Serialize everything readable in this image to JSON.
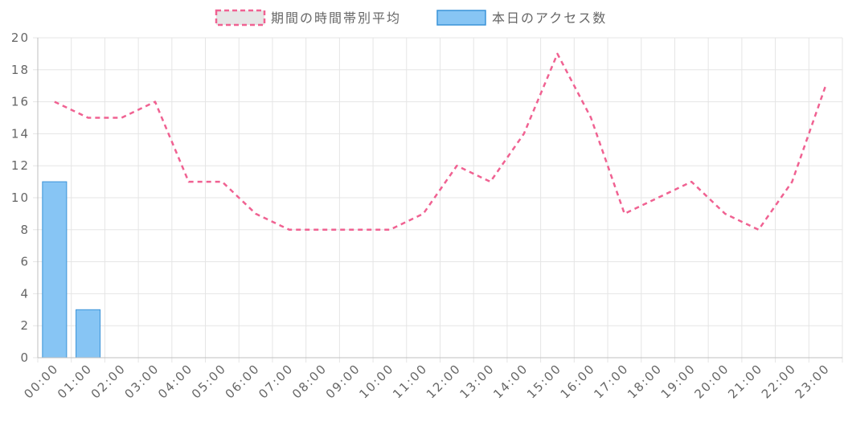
{
  "chart_data": {
    "type": "bar",
    "categories": [
      "00:00",
      "01:00",
      "02:00",
      "03:00",
      "04:00",
      "05:00",
      "06:00",
      "07:00",
      "08:00",
      "09:00",
      "10:00",
      "11:00",
      "12:00",
      "13:00",
      "14:00",
      "15:00",
      "16:00",
      "17:00",
      "18:00",
      "19:00",
      "20:00",
      "21:00",
      "22:00",
      "23:00"
    ],
    "series": [
      {
        "name": "期間の時間帯別平均",
        "kind": "line",
        "style": "dashed",
        "color": "#f06292",
        "values": [
          16,
          15,
          15,
          16,
          11,
          11,
          9,
          8,
          8,
          8,
          8,
          9,
          12,
          11,
          14,
          19,
          15,
          9,
          10,
          11,
          9,
          8,
          11,
          17
        ]
      },
      {
        "name": "本日のアクセス数",
        "kind": "bar",
        "color": "#87c5f4",
        "border_color": "#3a93d8",
        "values": [
          11,
          3,
          0,
          0,
          0,
          0,
          0,
          0,
          0,
          0,
          0,
          0,
          0,
          0,
          0,
          0,
          0,
          0,
          0,
          0,
          0,
          0,
          0,
          0
        ]
      }
    ],
    "ylim": [
      0,
      20
    ],
    "yticks": [
      "0",
      "2",
      "4",
      "6",
      "8",
      "10",
      "12",
      "14",
      "16",
      "18",
      "20"
    ],
    "grid": true,
    "legend": "top-center",
    "line_legend_fill": "#e6e6e6",
    "grid_color": "#e5e5e5",
    "axis_color": "#bfbfbf",
    "text_color": "#666666"
  }
}
